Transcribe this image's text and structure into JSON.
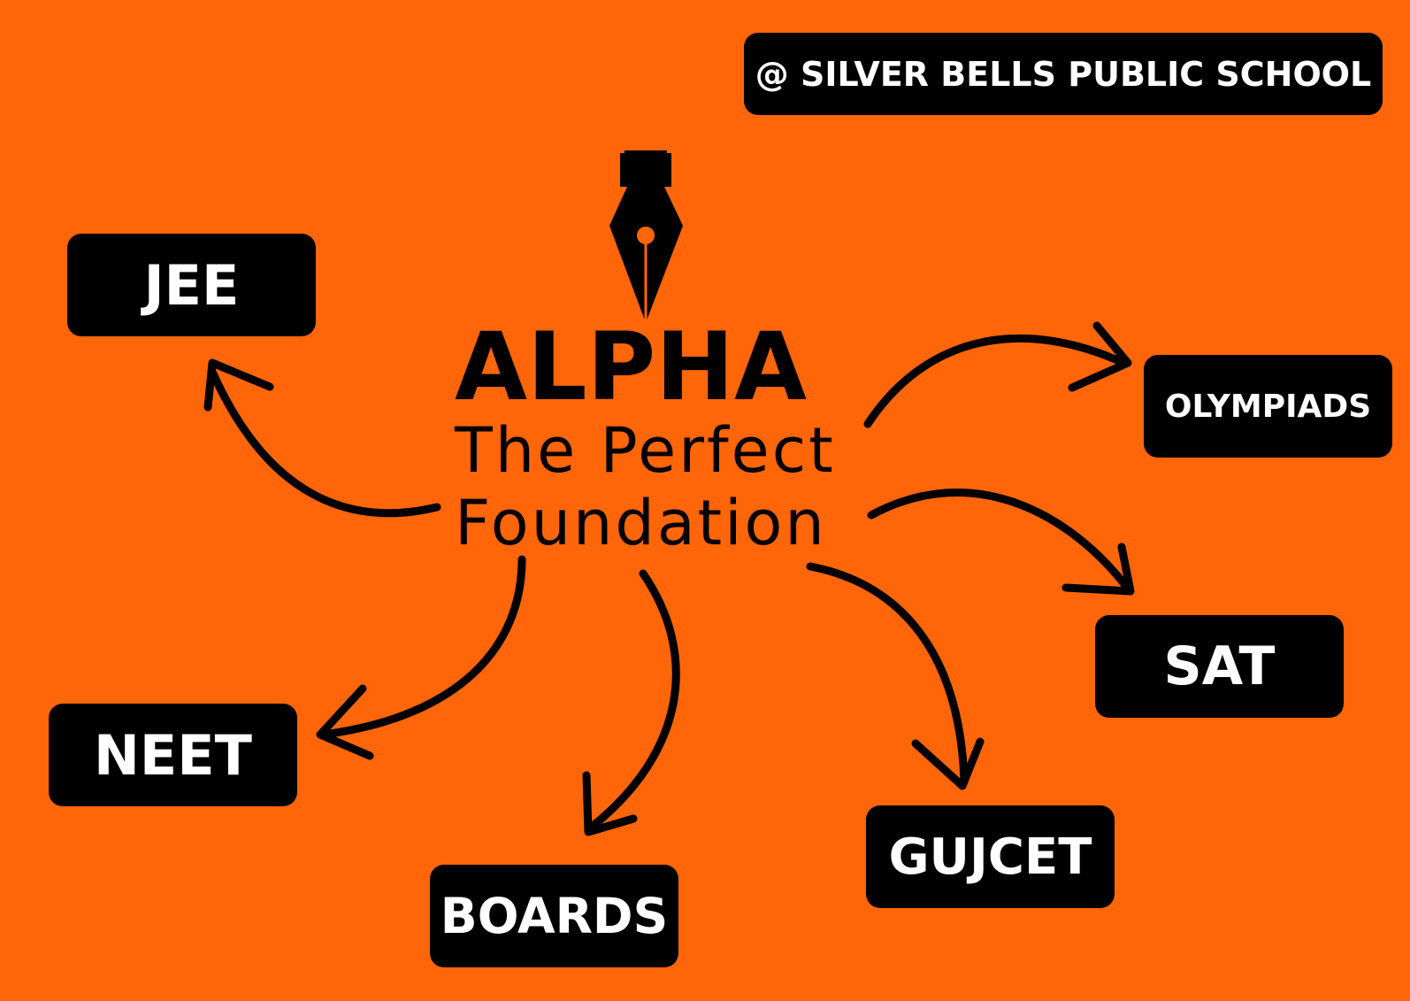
{
  "header": {
    "school": "@ SILVER BELLS PUBLIC SCHOOL"
  },
  "center": {
    "title": "ALPHA",
    "tagline_line1": "The Perfect",
    "tagline_line2": "Foundation",
    "icon": "fountain-pen-nib-icon"
  },
  "nodes": {
    "jee": "JEE",
    "neet": "NEET",
    "boards": "BOARDS",
    "gujcet": "GUJCET",
    "sat": "SAT",
    "olympiads": "OLYMPIADS"
  },
  "colors": {
    "background": "#ff6509",
    "box": "#000000",
    "box_text": "#ffffff",
    "text": "#000000"
  }
}
